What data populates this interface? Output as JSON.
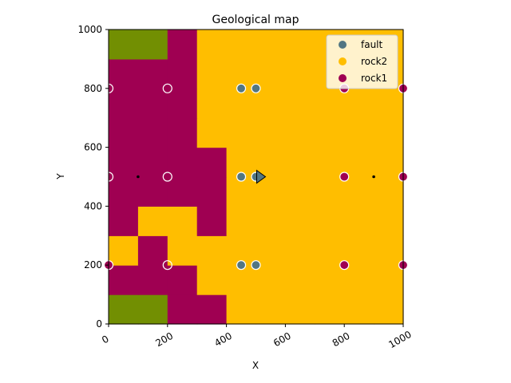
{
  "chart_data": {
    "type": "heatmap",
    "title": "Geological map",
    "xlabel": "X",
    "ylabel": "Y",
    "xlim": [
      0,
      1000
    ],
    "ylim": [
      0,
      1000
    ],
    "xticks": [
      "0",
      "200",
      "400",
      "600",
      "800",
      "1000"
    ],
    "yticks": [
      "0",
      "200",
      "400",
      "600",
      "800",
      "1000"
    ],
    "xtick_values": [
      0,
      200,
      400,
      600,
      800,
      1000
    ],
    "ytick_values": [
      0,
      200,
      400,
      600,
      800,
      1000
    ],
    "xtick_rotation": 30,
    "grid": false,
    "legend_placement": "upper-right",
    "colors": {
      "basement": "#728F02",
      "rock1": "#9F0052",
      "rock2": "#FFBE00",
      "fault": "#527682"
    },
    "cell_size": 100,
    "units_bottom_to_top": [
      [
        "basement",
        "basement",
        "rock1",
        "rock1",
        "rock2",
        "rock2",
        "rock2",
        "rock2",
        "rock2",
        "rock2"
      ],
      [
        "rock1",
        "rock1",
        "rock1",
        "rock2",
        "rock2",
        "rock2",
        "rock2",
        "rock2",
        "rock2",
        "rock2"
      ],
      [
        "rock2",
        "rock1",
        "rock2",
        "rock2",
        "rock2",
        "rock2",
        "rock2",
        "rock2",
        "rock2",
        "rock2"
      ],
      [
        "rock1",
        "rock2",
        "rock2",
        "rock1",
        "rock2",
        "rock2",
        "rock2",
        "rock2",
        "rock2",
        "rock2"
      ],
      [
        "rock1",
        "rock1",
        "rock1",
        "rock1",
        "rock2",
        "rock2",
        "rock2",
        "rock2",
        "rock2",
        "rock2"
      ],
      [
        "rock1",
        "rock1",
        "rock1",
        "rock1",
        "rock2",
        "rock2",
        "rock2",
        "rock2",
        "rock2",
        "rock2"
      ],
      [
        "rock1",
        "rock1",
        "rock1",
        "rock2",
        "rock2",
        "rock2",
        "rock2",
        "rock2",
        "rock2",
        "rock2"
      ],
      [
        "rock1",
        "rock1",
        "rock1",
        "rock2",
        "rock2",
        "rock2",
        "rock2",
        "rock2",
        "rock2",
        "rock2"
      ],
      [
        "rock1",
        "rock1",
        "rock1",
        "rock2",
        "rock2",
        "rock2",
        "rock2",
        "rock2",
        "rock2",
        "rock2"
      ],
      [
        "basement",
        "basement",
        "rock1",
        "rock2",
        "rock2",
        "rock2",
        "rock2",
        "rock2",
        "rock2",
        "rock2"
      ]
    ],
    "points": [
      {
        "x": 0,
        "y": 800,
        "surface": "none"
      },
      {
        "x": 200,
        "y": 800,
        "surface": "none"
      },
      {
        "x": 0,
        "y": 500,
        "surface": "none"
      },
      {
        "x": 200,
        "y": 500,
        "surface": "none"
      },
      {
        "x": 0,
        "y": 200,
        "surface": "rock1"
      },
      {
        "x": 200,
        "y": 200,
        "surface": "none"
      },
      {
        "x": 450,
        "y": 800,
        "surface": "fault"
      },
      {
        "x": 500,
        "y": 800,
        "surface": "fault"
      },
      {
        "x": 450,
        "y": 500,
        "surface": "fault"
      },
      {
        "x": 500,
        "y": 500,
        "surface": "fault"
      },
      {
        "x": 450,
        "y": 200,
        "surface": "fault"
      },
      {
        "x": 500,
        "y": 200,
        "surface": "fault"
      },
      {
        "x": 800,
        "y": 800,
        "surface": "rock1"
      },
      {
        "x": 1000,
        "y": 800,
        "surface": "rock1"
      },
      {
        "x": 800,
        "y": 500,
        "surface": "rock1"
      },
      {
        "x": 1000,
        "y": 500,
        "surface": "rock1"
      },
      {
        "x": 800,
        "y": 200,
        "surface": "rock1"
      },
      {
        "x": 1000,
        "y": 200,
        "surface": "rock1"
      }
    ],
    "small_dots": [
      {
        "x": 100,
        "y": 500
      },
      {
        "x": 900,
        "y": 500
      }
    ],
    "orientation_marker": {
      "x": 500,
      "y": 500,
      "direction": "right",
      "surface": "fault"
    },
    "legend": [
      {
        "label": "fault",
        "surface": "fault"
      },
      {
        "label": "rock2",
        "surface": "rock2"
      },
      {
        "label": "rock1",
        "surface": "rock1"
      }
    ]
  }
}
